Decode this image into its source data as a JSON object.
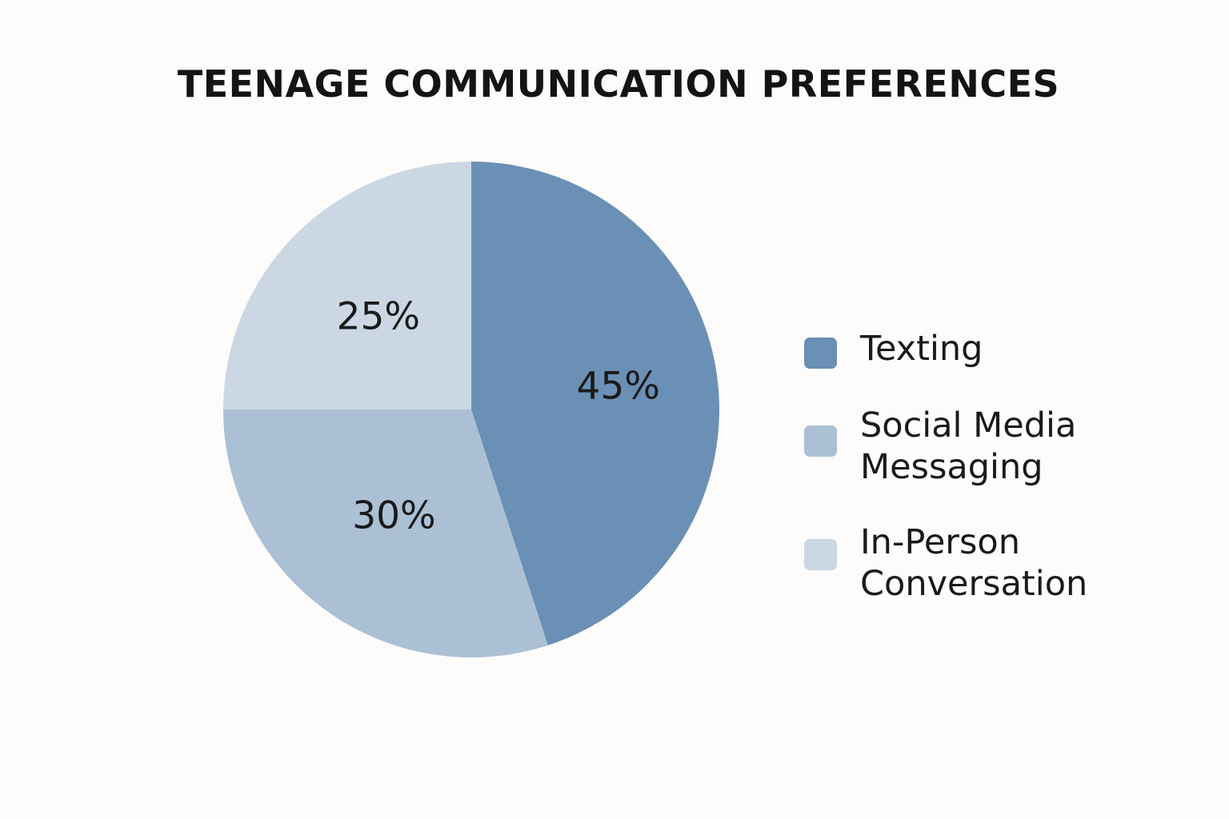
{
  "chart_data": {
    "type": "pie",
    "title": "TEENAGE COMMUNICATION PREFERENCES",
    "slices": [
      {
        "label": "Texting",
        "value": 45,
        "display": "45%",
        "color": "#6a90b5"
      },
      {
        "label": "Social Media Messaging",
        "value": 30,
        "display": "30%",
        "color": "#abc0d4"
      },
      {
        "label": "In-Person Conversation",
        "value": 25,
        "display": "25%",
        "color": "#cbd8e4"
      }
    ],
    "legend_placement": "right",
    "start_angle": "12 o'clock",
    "direction": "clockwise"
  }
}
